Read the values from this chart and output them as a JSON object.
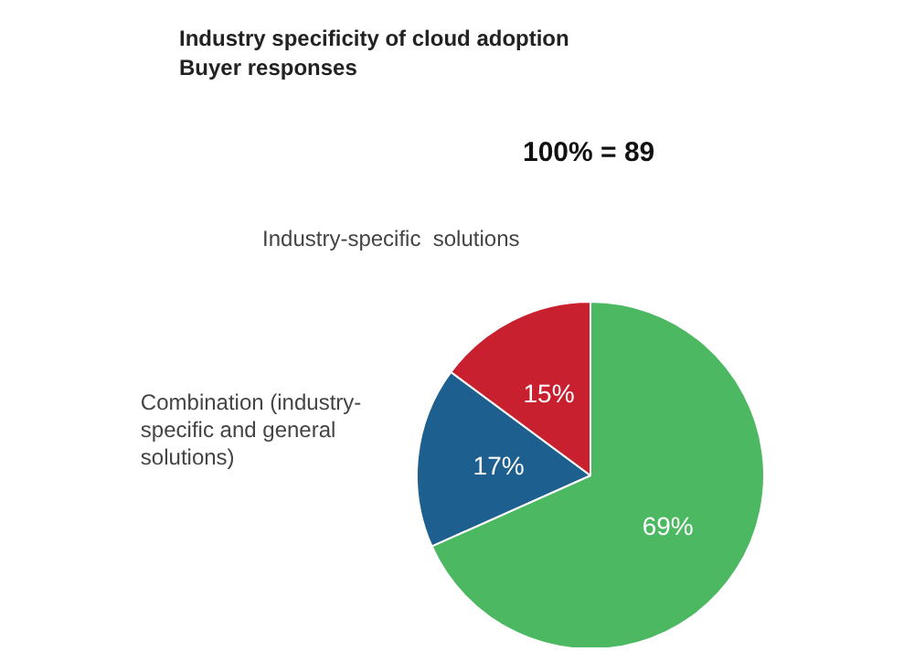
{
  "chart_data": {
    "type": "pie",
    "title": "Industry specificity of cloud adoption",
    "subtitle": "Buyer responses",
    "annotations": [
      "100% = 89"
    ],
    "categories": [
      null,
      "Combination (industry-\nspecific and general\nsolutions)",
      "Industry-specific  solutions"
    ],
    "values": [
      69,
      17,
      15
    ],
    "colors": [
      "#4cb862",
      "#1d5f8e",
      "#c8202f"
    ],
    "value_labels": [
      "69%",
      "17%",
      "15%"
    ],
    "legend": false
  }
}
